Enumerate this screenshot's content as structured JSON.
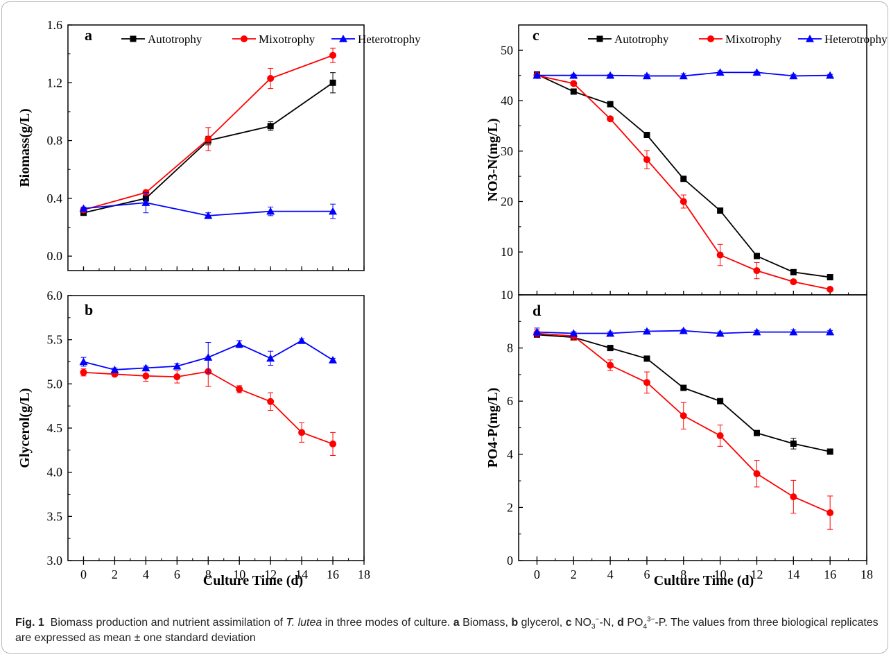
{
  "figure": {
    "xlabel": "Culture Time (d)",
    "caption": {
      "fig_label": "Fig. 1",
      "text1": "Biomass production and nutrient assimilation of ",
      "species": "T. lutea",
      "text2": " in three modes of culture. ",
      "a": "a",
      "a_text": " Biomass, ",
      "b": "b",
      "b_text": " glycerol, ",
      "c": "c",
      "c_text_pre": " NO",
      "c_sub": "3",
      "c_sup": "−",
      "c_text_post": "-N, ",
      "d": "d",
      "d_text_pre": " PO",
      "d_sub": "4",
      "d_sup": "3−",
      "d_text_post": "-P. The values from three biological replicates are expressed as mean ± one standard deviation"
    }
  },
  "chart_data": [
    {
      "panel": "a",
      "type": "line",
      "ylabel": "Biomass(g/L)",
      "xlim": [
        -1,
        18
      ],
      "ylim": [
        -0.1,
        1.6
      ],
      "xticks": [
        0,
        2,
        4,
        6,
        8,
        10,
        12,
        14,
        16,
        18
      ],
      "yticks": [
        0.0,
        0.4,
        0.8,
        1.2,
        1.6
      ],
      "ytick_labels": [
        "0.0",
        "0.4",
        "0.8",
        "1.2",
        "1.6"
      ],
      "legend": [
        "Autotrophy",
        "Mixotrophy",
        "Heterotrophy"
      ],
      "series": [
        {
          "name": "Autotrophy",
          "color": "#000000",
          "marker": "square",
          "x": [
            0,
            4,
            8,
            12,
            16
          ],
          "y": [
            0.3,
            0.4,
            0.8,
            0.9,
            1.2
          ],
          "err": [
            0.01,
            0.02,
            0.03,
            0.03,
            0.07
          ]
        },
        {
          "name": "Mixotrophy",
          "color": "#ff0000",
          "marker": "circle",
          "x": [
            0,
            4,
            8,
            12,
            16
          ],
          "y": [
            0.32,
            0.44,
            0.81,
            1.23,
            1.39
          ],
          "err": [
            0.01,
            0.01,
            0.08,
            0.07,
            0.05
          ]
        },
        {
          "name": "Heterotrophy",
          "color": "#0000ff",
          "marker": "triangle",
          "x": [
            0,
            4,
            8,
            12,
            16
          ],
          "y": [
            0.33,
            0.37,
            0.28,
            0.31,
            0.31
          ],
          "err": [
            0.01,
            0.07,
            0.02,
            0.03,
            0.05
          ]
        }
      ]
    },
    {
      "panel": "b",
      "type": "line",
      "ylabel": "Glycerol(g/L)",
      "xlim": [
        -1,
        18
      ],
      "ylim": [
        3.0,
        6.0
      ],
      "xticks": [
        0,
        2,
        4,
        6,
        8,
        10,
        12,
        14,
        16,
        18
      ],
      "yticks": [
        3.0,
        3.5,
        4.0,
        4.5,
        5.0,
        5.5,
        6.0
      ],
      "ytick_labels": [
        "3.0",
        "3.5",
        "4.0",
        "4.5",
        "5.0",
        "5.5",
        "6.0"
      ],
      "series": [
        {
          "name": "Mixotrophy",
          "color": "#ff0000",
          "marker": "circle",
          "x": [
            0,
            2,
            4,
            6,
            8,
            10,
            12,
            14,
            16
          ],
          "y": [
            5.13,
            5.11,
            5.09,
            5.08,
            5.14,
            4.94,
            4.8,
            4.45,
            4.32
          ],
          "err": [
            0.04,
            0.02,
            0.06,
            0.07,
            0.17,
            0.04,
            0.1,
            0.11,
            0.13
          ]
        },
        {
          "name": "Heterotrophy",
          "color": "#0000ff",
          "marker": "triangle",
          "x": [
            0,
            2,
            4,
            6,
            8,
            10,
            12,
            14,
            16
          ],
          "y": [
            5.25,
            5.16,
            5.18,
            5.2,
            5.3,
            5.45,
            5.29,
            5.49,
            5.27
          ],
          "err": [
            0.05,
            0.02,
            0.02,
            0.03,
            0.17,
            0.04,
            0.08,
            0.02,
            0.02
          ]
        }
      ]
    },
    {
      "panel": "c",
      "type": "line",
      "ylabel": "NO3-N(mg/L)",
      "xlim": [
        -1,
        18
      ],
      "ylim": [
        1.5,
        55
      ],
      "xticks": [
        0,
        2,
        4,
        6,
        8,
        10,
        12,
        14,
        16,
        18
      ],
      "yticks": [
        10,
        20,
        30,
        40,
        50
      ],
      "ytick_labels": [
        "10",
        "20",
        "30",
        "40",
        "50"
      ],
      "legend": [
        "Autotrophy",
        "Mixotrophy",
        "Heterotrophy"
      ],
      "series": [
        {
          "name": "Autotrophy",
          "color": "#000000",
          "marker": "square",
          "x": [
            0,
            2,
            4,
            6,
            8,
            10,
            12,
            14,
            16
          ],
          "y": [
            45.2,
            41.8,
            39.3,
            33.2,
            24.5,
            18.2,
            9.2,
            6.0,
            5.0
          ],
          "err": [
            0.3,
            0.3,
            0.3,
            0.4,
            0.5,
            0.4,
            0.4,
            0.3,
            0.3
          ]
        },
        {
          "name": "Mixotrophy",
          "color": "#ff0000",
          "marker": "circle",
          "x": [
            0,
            2,
            4,
            6,
            8,
            10,
            12,
            14,
            16
          ],
          "y": [
            45.0,
            43.4,
            36.4,
            28.3,
            20.0,
            9.4,
            6.3,
            4.1,
            2.6
          ],
          "err": [
            0.3,
            0.3,
            0.3,
            1.8,
            1.3,
            2.1,
            1.6,
            0.4,
            0.2
          ]
        },
        {
          "name": "Heterotrophy",
          "color": "#0000ff",
          "marker": "triangle",
          "x": [
            0,
            2,
            4,
            6,
            8,
            10,
            12,
            14,
            16
          ],
          "y": [
            45.0,
            45.0,
            45.0,
            44.9,
            44.9,
            45.6,
            45.6,
            44.9,
            45.0
          ],
          "err": [
            0.2,
            0.2,
            0.2,
            0.3,
            0.4,
            0.3,
            0.2,
            0.3,
            0.2
          ]
        }
      ]
    },
    {
      "panel": "d",
      "type": "line",
      "ylabel": "PO4-P(mg/L)",
      "xlim": [
        -1,
        18
      ],
      "ylim": [
        0,
        10
      ],
      "xticks": [
        0,
        2,
        4,
        6,
        8,
        10,
        12,
        14,
        16,
        18
      ],
      "yticks": [
        0,
        2,
        4,
        6,
        8,
        10
      ],
      "ytick_labels": [
        "0",
        "2",
        "4",
        "6",
        "8",
        "10"
      ],
      "series": [
        {
          "name": "Autotrophy",
          "color": "#000000",
          "marker": "square",
          "x": [
            0,
            2,
            4,
            6,
            8,
            10,
            12,
            14,
            16
          ],
          "y": [
            8.5,
            8.4,
            8.0,
            7.6,
            6.5,
            6.0,
            4.8,
            4.4,
            4.1
          ],
          "err": [
            0.08,
            0.06,
            0.06,
            0.06,
            0.06,
            0.06,
            0.08,
            0.2,
            0.06
          ]
        },
        {
          "name": "Mixotrophy",
          "color": "#ff0000",
          "marker": "circle",
          "x": [
            0,
            2,
            4,
            6,
            8,
            10,
            12,
            14,
            16
          ],
          "y": [
            8.55,
            8.45,
            7.35,
            6.7,
            5.45,
            4.7,
            3.27,
            2.4,
            1.8
          ],
          "err": [
            0.15,
            0.15,
            0.2,
            0.4,
            0.5,
            0.4,
            0.5,
            0.62,
            0.63
          ]
        },
        {
          "name": "Heterotrophy",
          "color": "#0000ff",
          "marker": "triangle",
          "x": [
            0,
            2,
            4,
            6,
            8,
            10,
            12,
            14,
            16
          ],
          "y": [
            8.6,
            8.55,
            8.55,
            8.63,
            8.65,
            8.55,
            8.6,
            8.6,
            8.6
          ],
          "err": [
            0.15,
            0.06,
            0.06,
            0.06,
            0.06,
            0.06,
            0.06,
            0.08,
            0.06
          ]
        }
      ]
    }
  ]
}
